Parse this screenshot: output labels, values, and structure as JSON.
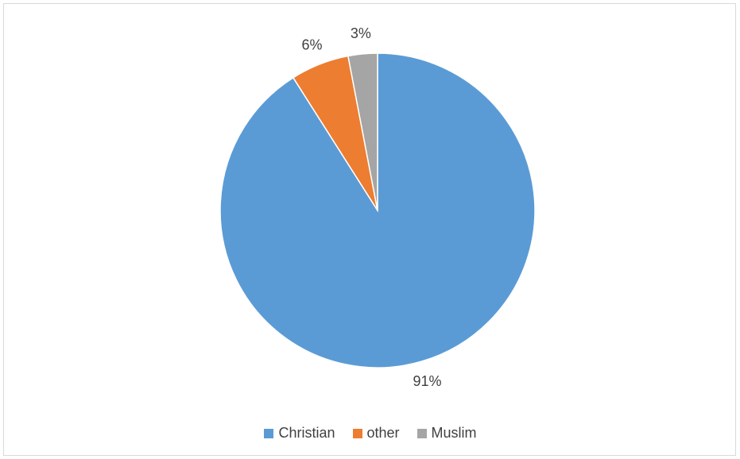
{
  "chart_data": {
    "type": "pie",
    "title": "",
    "slices": [
      {
        "name": "Christian",
        "value": 91,
        "label": "91%",
        "color": "#5B9BD5"
      },
      {
        "name": "other",
        "value": 6,
        "label": "6%",
        "color": "#ED7D31"
      },
      {
        "name": "Muslim",
        "value": 3,
        "label": "3%",
        "color": "#A5A5A5"
      }
    ],
    "legend_position": "bottom",
    "start_angle_deg": 0,
    "direction": "clockwise"
  }
}
